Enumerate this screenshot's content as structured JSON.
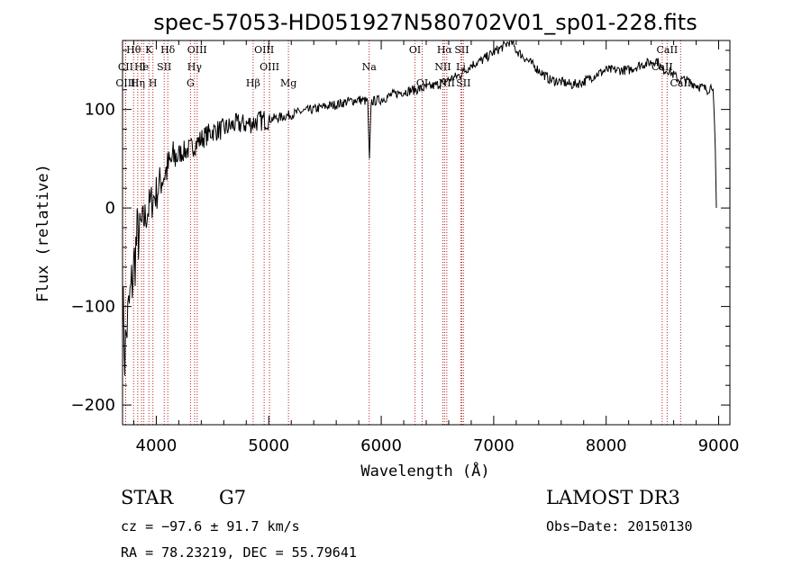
{
  "chart_data": {
    "type": "line",
    "title": "spec-57053-HD051927N580702V01_sp01-228.fits",
    "xlabel": "Wavelength (Å)",
    "ylabel": "Flux (relative)",
    "xlim": [
      3700,
      9100
    ],
    "ylim": [
      -220,
      170
    ],
    "xticks": [
      4000,
      5000,
      6000,
      7000,
      8000,
      9000
    ],
    "xtick_labels": [
      "4000",
      "5000",
      "6000",
      "7000",
      "8000",
      "9000"
    ],
    "yticks": [
      -200,
      -100,
      0,
      100
    ],
    "ytick_labels": [
      "−200",
      "−100",
      "0",
      "100"
    ],
    "series": [
      {
        "name": "spectrum",
        "x": [
          3700,
          3720,
          3740,
          3760,
          3780,
          3800,
          3830,
          3860,
          3900,
          3950,
          4000,
          4050,
          4100,
          4150,
          4200,
          4300,
          4400,
          4500,
          4600,
          4700,
          4800,
          4900,
          5000,
          5100,
          5200,
          5300,
          5400,
          5500,
          5600,
          5700,
          5800,
          5880,
          5895,
          5910,
          6000,
          6100,
          6200,
          6300,
          6400,
          6500,
          6560,
          6600,
          6700,
          6800,
          6900,
          7000,
          7100,
          7150,
          7200,
          7300,
          7400,
          7500,
          7600,
          7700,
          7800,
          7900,
          8000,
          8100,
          8200,
          8300,
          8400,
          8450,
          8500,
          8550,
          8600,
          8650,
          8700,
          8800,
          8900,
          8950,
          8970,
          8980
        ],
        "y": [
          -90,
          -150,
          -120,
          -100,
          -80,
          -60,
          -30,
          -20,
          -10,
          5,
          15,
          30,
          40,
          50,
          55,
          60,
          70,
          78,
          80,
          85,
          85,
          88,
          90,
          92,
          95,
          98,
          100,
          103,
          105,
          108,
          110,
          108,
          50,
          108,
          110,
          115,
          118,
          120,
          122,
          125,
          128,
          130,
          135,
          145,
          150,
          158,
          165,
          170,
          160,
          150,
          140,
          130,
          128,
          125,
          128,
          135,
          140,
          140,
          140,
          145,
          148,
          150,
          140,
          140,
          135,
          130,
          130,
          125,
          120,
          125,
          60,
          0
        ]
      }
    ],
    "line_markers": [
      {
        "label": "Hθ",
        "wavelength": 3798,
        "row": 1
      },
      {
        "label": "K",
        "wavelength": 3934,
        "row": 1
      },
      {
        "label": "Hδ",
        "wavelength": 4102,
        "row": 1
      },
      {
        "label": "OIII",
        "wavelength": 4363,
        "row": 1
      },
      {
        "label": "OIII",
        "wavelength": 4959,
        "row": 1
      },
      {
        "label": "OI",
        "wavelength": 6300,
        "row": 1
      },
      {
        "label": "Hα",
        "wavelength": 6563,
        "row": 1
      },
      {
        "label": "SII",
        "wavelength": 6716,
        "row": 1
      },
      {
        "label": "CaII",
        "wavelength": 8542,
        "row": 1
      },
      {
        "label": "CII",
        "wavelength": 3727,
        "row": 2
      },
      {
        "label": "He",
        "wavelength": 3869,
        "row": 2
      },
      {
        "label": "I",
        "wavelength": 3889,
        "row": 2
      },
      {
        "label": "SII",
        "wavelength": 4070,
        "row": 2
      },
      {
        "label": "Hγ",
        "wavelength": 4340,
        "row": 2
      },
      {
        "label": "OIII",
        "wavelength": 5007,
        "row": 2
      },
      {
        "label": "Na",
        "wavelength": 5893,
        "row": 2
      },
      {
        "label": "NII",
        "wavelength": 6548,
        "row": 2
      },
      {
        "label": "Li",
        "wavelength": 6708,
        "row": 2
      },
      {
        "label": "CaII",
        "wavelength": 8498,
        "row": 2
      },
      {
        "label": "OIII",
        "wavelength": 3727,
        "row": 3
      },
      {
        "label": "Hη",
        "wavelength": 3835,
        "row": 3
      },
      {
        "label": "H",
        "wavelength": 3970,
        "row": 3
      },
      {
        "label": "G",
        "wavelength": 4304,
        "row": 3
      },
      {
        "label": "Hβ",
        "wavelength": 4861,
        "row": 3
      },
      {
        "label": "Mg",
        "wavelength": 5175,
        "row": 3
      },
      {
        "label": "OI",
        "wavelength": 6364,
        "row": 3
      },
      {
        "label": "NII",
        "wavelength": 6583,
        "row": 3
      },
      {
        "label": "SII",
        "wavelength": 6731,
        "row": 3
      },
      {
        "label": "CaII",
        "wavelength": 8662,
        "row": 3
      }
    ]
  },
  "info": {
    "object_class": "STAR",
    "subclass": "G7",
    "survey": "LAMOST DR3",
    "redshift": "cz = −97.6 ± 91.7 km/s",
    "obs_date": "Obs−Date: 20150130",
    "coords": "RA =  78.23219, DEC =  55.79641"
  },
  "colors": {
    "marker_line": "#b22222",
    "spectrum": "#000000",
    "axes": "#000000"
  }
}
